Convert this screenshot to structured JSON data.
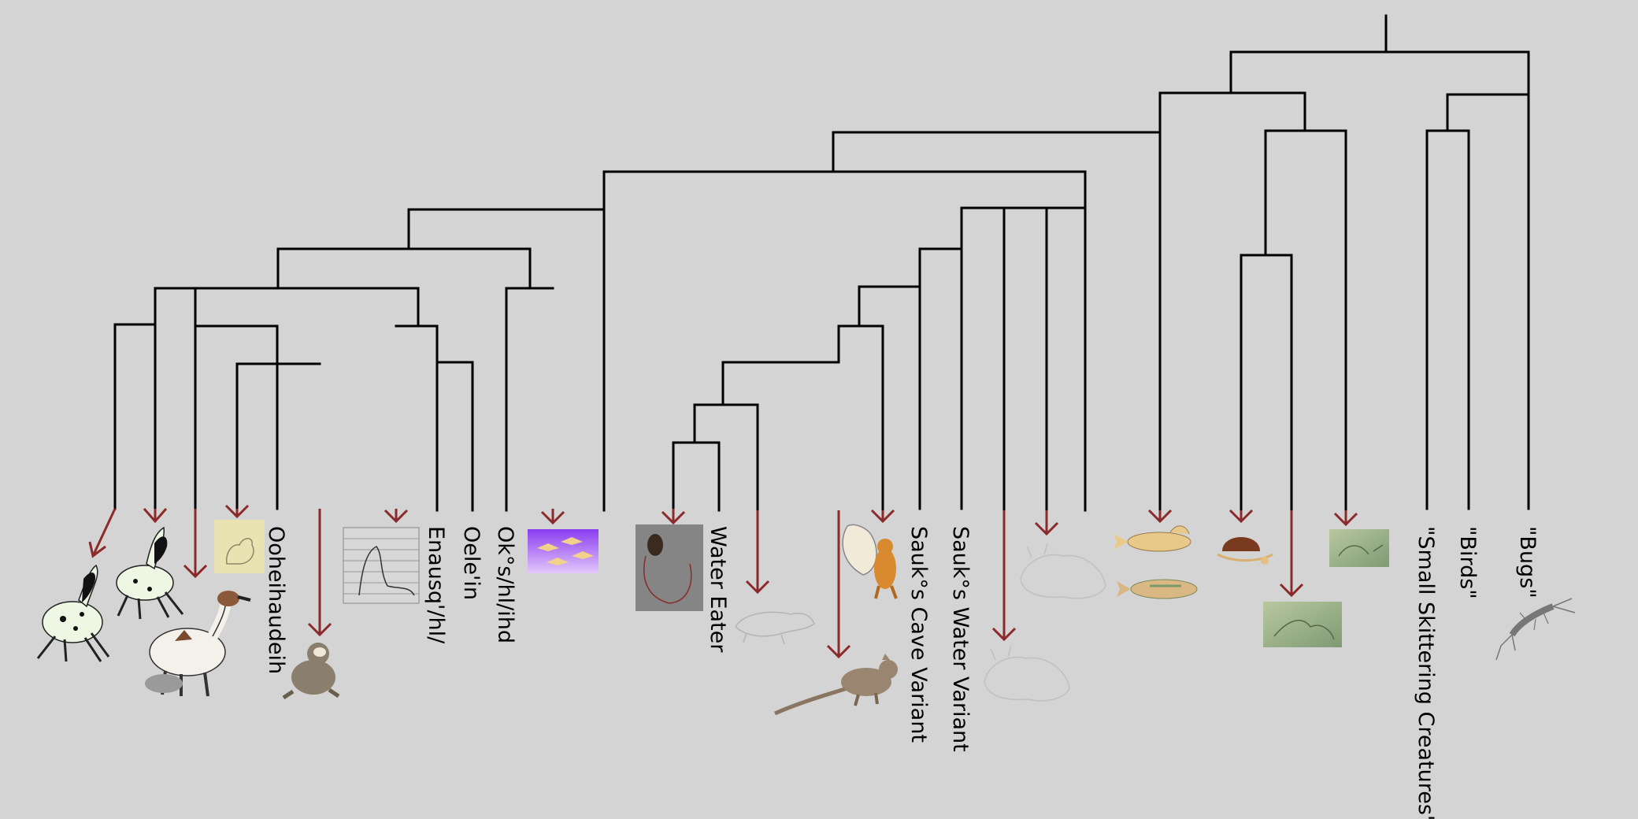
{
  "labels": {
    "ooheihaudeih": "Ooheihaudeih",
    "enausq": "Enausq'/hl/",
    "oelein": "Oele'in",
    "okshlihd": "Ok°s/hl/ihd",
    "water_eater": "Water Eater",
    "sauks_cave_variant": "Sauk°s Cave Variant",
    "sauks_water_variant": "Sauk°s Water Variant",
    "small_skittering_creatures": "\"Small Skittering Creatures\"",
    "birds": "\"Birds\"",
    "bugs": "\"Bugs\""
  },
  "colors": {
    "background": "#d4d4d4",
    "branch": "#000000",
    "descendant_arrow": "#8b2a2a"
  },
  "icons": [
    "spotted-quadruped-sketch",
    "spotted-quadruped-sketch-2",
    "long-necked-beast-with-rider",
    "bird-sketch-on-paper",
    "seated-creature-sketch",
    "lined-paper-sketch",
    "purple-flying-creatures",
    "dark-creature-on-grey",
    "small-quadruped-sketch",
    "long-tailed-rodent",
    "orange-gliding-creature",
    "horned-creature-sketch",
    "horned-creature-sketch-2",
    "fish-creature",
    "fish-creature-2",
    "shelled-creature",
    "green-sketch-thumbnail",
    "green-sketch-thumbnail-2",
    "insect-sketch"
  ]
}
